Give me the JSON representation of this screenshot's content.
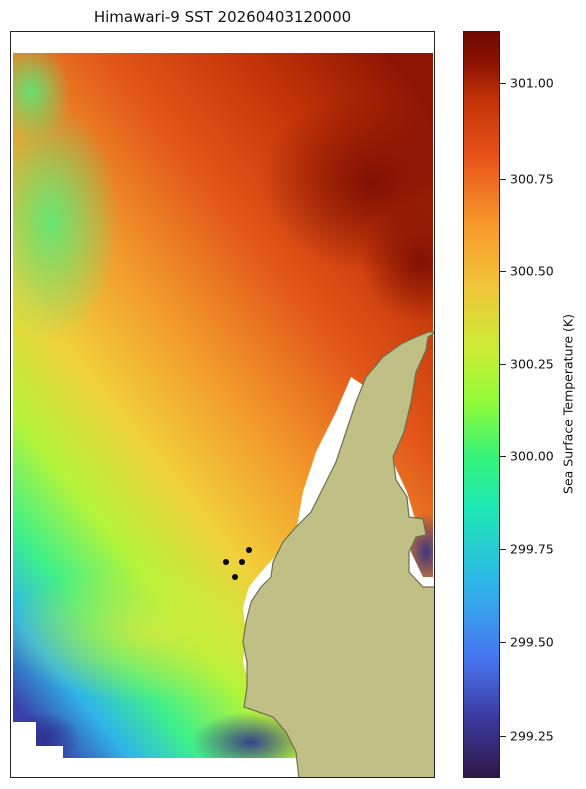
{
  "title": "Himawari-9 SST 20260403120000",
  "colorbar": {
    "label": "Sea Surface Temperature (K)",
    "ticks": [
      "301.00",
      "300.75",
      "300.50",
      "300.25",
      "300.00",
      "299.75",
      "299.50",
      "299.25"
    ],
    "range": [
      299.13,
      301.14
    ]
  },
  "colors": {
    "land": "#c0bf86",
    "coastline": "#6f6f4d",
    "station_marker": "#000000"
  },
  "chart_data": {
    "type": "heatmap",
    "title": "Himawari-9 SST 20260403120000",
    "colorbar_label": "Sea Surface Temperature (K)",
    "value_range": [
      299.13,
      301.14
    ],
    "features": [
      "sea-surface-temperature-field",
      "land-mass",
      "station-markers"
    ],
    "station_marker_count": 4
  }
}
